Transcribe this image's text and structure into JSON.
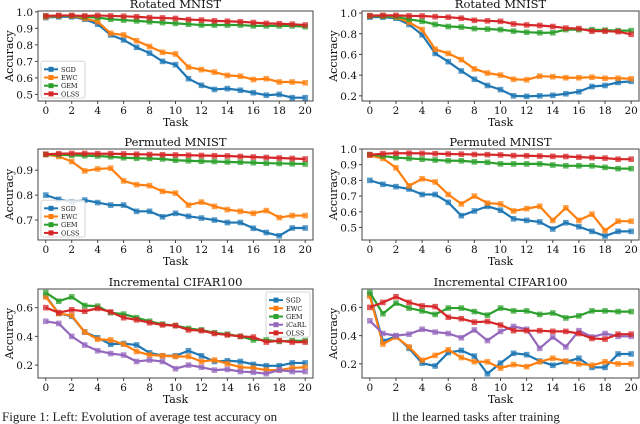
{
  "figure": {
    "caption_left": "Figure 1: Left: Evolution of average test accuracy on",
    "caption_right": "ll the learned tasks after training"
  },
  "series_colors": {
    "SGD": "#1f77b4",
    "EWC": "#ff7f0e",
    "GEM": "#2ca02c",
    "iCaRL": "#9467bd",
    "OLSS": "#d62728"
  },
  "chart_data": [
    {
      "id": "rotated-mnist-left",
      "type": "line",
      "title": "Rotated MNIST",
      "xlabel": "Task",
      "ylabel": "Accuracy",
      "xlim": [
        -0.6,
        20.6
      ],
      "ylim": [
        0.46,
        1.005
      ],
      "xticks": [
        0,
        2,
        4,
        6,
        8,
        10,
        12,
        14,
        16,
        18,
        20
      ],
      "yticks": [
        0.5,
        0.6,
        0.7,
        0.8,
        0.9,
        1.0
      ],
      "ytick_labels": [
        "0.5",
        "0.6",
        "0.7",
        "0.8",
        "0.9",
        "1.0"
      ],
      "legend": "lower-left",
      "x": [
        0,
        1,
        2,
        3,
        4,
        5,
        6,
        7,
        8,
        9,
        10,
        11,
        12,
        13,
        14,
        15,
        16,
        17,
        18,
        19,
        20
      ],
      "series": [
        {
          "name": "SGD",
          "values": [
            0.965,
            0.97,
            0.97,
            0.955,
            0.925,
            0.86,
            0.83,
            0.785,
            0.75,
            0.7,
            0.68,
            0.595,
            0.555,
            0.53,
            0.535,
            0.525,
            0.51,
            0.495,
            0.5,
            0.48,
            0.48
          ]
        },
        {
          "name": "EWC",
          "values": [
            0.97,
            0.975,
            0.975,
            0.96,
            0.94,
            0.87,
            0.86,
            0.825,
            0.79,
            0.755,
            0.745,
            0.665,
            0.65,
            0.635,
            0.615,
            0.61,
            0.59,
            0.595,
            0.575,
            0.575,
            0.57
          ]
        },
        {
          "name": "GEM",
          "values": [
            0.975,
            0.975,
            0.975,
            0.97,
            0.965,
            0.955,
            0.95,
            0.945,
            0.94,
            0.935,
            0.93,
            0.925,
            0.92,
            0.92,
            0.92,
            0.92,
            0.915,
            0.915,
            0.915,
            0.915,
            0.91
          ]
        },
        {
          "name": "OLSS",
          "values": [
            0.975,
            0.978,
            0.978,
            0.975,
            0.978,
            0.975,
            0.973,
            0.97,
            0.965,
            0.963,
            0.96,
            0.953,
            0.95,
            0.945,
            0.943,
            0.94,
            0.935,
            0.93,
            0.928,
            0.925,
            0.92
          ]
        }
      ]
    },
    {
      "id": "rotated-mnist-right",
      "type": "line",
      "title": "Rotated MNIST",
      "xlabel": "Task",
      "ylabel": "Accuracy",
      "xlim": [
        -0.6,
        20.6
      ],
      "ylim": [
        0.15,
        1.02
      ],
      "xticks": [
        0,
        2,
        4,
        6,
        8,
        10,
        12,
        14,
        16,
        18,
        20
      ],
      "yticks": [
        0.2,
        0.4,
        0.6,
        0.8,
        1.0
      ],
      "ytick_labels": [
        "0.2",
        "0.4",
        "0.6",
        "0.8",
        "1.0"
      ],
      "legend": "none",
      "x": [
        0,
        1,
        2,
        3,
        4,
        5,
        6,
        7,
        8,
        9,
        10,
        11,
        12,
        13,
        14,
        15,
        16,
        17,
        18,
        19,
        20
      ],
      "series": [
        {
          "name": "SGD",
          "values": [
            0.96,
            0.96,
            0.95,
            0.89,
            0.79,
            0.61,
            0.53,
            0.44,
            0.36,
            0.3,
            0.26,
            0.2,
            0.195,
            0.2,
            0.205,
            0.22,
            0.24,
            0.29,
            0.3,
            0.33,
            0.34
          ]
        },
        {
          "name": "EWC",
          "values": [
            0.97,
            0.97,
            0.96,
            0.91,
            0.84,
            0.65,
            0.61,
            0.55,
            0.46,
            0.42,
            0.4,
            0.36,
            0.355,
            0.39,
            0.385,
            0.375,
            0.375,
            0.38,
            0.37,
            0.37,
            0.365
          ]
        },
        {
          "name": "GEM",
          "values": [
            0.97,
            0.97,
            0.965,
            0.94,
            0.92,
            0.89,
            0.87,
            0.865,
            0.85,
            0.845,
            0.84,
            0.825,
            0.815,
            0.81,
            0.81,
            0.84,
            0.84,
            0.84,
            0.835,
            0.83,
            0.83
          ]
        },
        {
          "name": "OLSS",
          "values": [
            0.975,
            0.978,
            0.978,
            0.973,
            0.972,
            0.965,
            0.96,
            0.95,
            0.93,
            0.925,
            0.92,
            0.895,
            0.885,
            0.88,
            0.87,
            0.855,
            0.85,
            0.825,
            0.825,
            0.82,
            0.795
          ]
        }
      ]
    },
    {
      "id": "permuted-mnist-left",
      "type": "line",
      "title": "Permuted MNIST",
      "xlabel": "Task",
      "ylabel": "Accuracy",
      "xlim": [
        -0.6,
        20.6
      ],
      "ylim": [
        0.62,
        0.985
      ],
      "xticks": [
        0,
        2,
        4,
        6,
        8,
        10,
        12,
        14,
        16,
        18,
        20
      ],
      "yticks": [
        0.7,
        0.8,
        0.9
      ],
      "ytick_labels": [
        "0.7",
        "0.8",
        "0.9"
      ],
      "legend": "lower-left",
      "x": [
        0,
        1,
        2,
        3,
        4,
        5,
        6,
        7,
        8,
        9,
        10,
        11,
        12,
        13,
        14,
        15,
        16,
        17,
        18,
        19,
        20
      ],
      "series": [
        {
          "name": "SGD",
          "values": [
            0.8,
            0.783,
            0.772,
            0.78,
            0.77,
            0.76,
            0.76,
            0.735,
            0.735,
            0.713,
            0.727,
            0.715,
            0.708,
            0.7,
            0.69,
            0.69,
            0.667,
            0.65,
            0.637,
            0.668,
            0.668
          ]
        },
        {
          "name": "EWC",
          "values": [
            0.963,
            0.955,
            0.935,
            0.897,
            0.905,
            0.908,
            0.857,
            0.842,
            0.838,
            0.815,
            0.808,
            0.76,
            0.772,
            0.755,
            0.742,
            0.735,
            0.727,
            0.738,
            0.71,
            0.718,
            0.718
          ]
        },
        {
          "name": "GEM",
          "values": [
            0.963,
            0.962,
            0.96,
            0.958,
            0.957,
            0.954,
            0.95,
            0.948,
            0.947,
            0.945,
            0.94,
            0.938,
            0.936,
            0.935,
            0.933,
            0.932,
            0.93,
            0.928,
            0.927,
            0.926,
            0.925
          ]
        },
        {
          "name": "OLSS",
          "values": [
            0.964,
            0.966,
            0.967,
            0.967,
            0.966,
            0.966,
            0.965,
            0.964,
            0.963,
            0.962,
            0.961,
            0.96,
            0.959,
            0.958,
            0.957,
            0.955,
            0.953,
            0.951,
            0.949,
            0.947,
            0.945
          ]
        }
      ]
    },
    {
      "id": "permuted-mnist-right",
      "type": "line",
      "title": "Permuted MNIST",
      "xlabel": "Task",
      "ylabel": "Accuracy",
      "xlim": [
        -0.6,
        20.6
      ],
      "ylim": [
        0.42,
        1.0
      ],
      "xticks": [
        0,
        2,
        4,
        6,
        8,
        10,
        12,
        14,
        16,
        18,
        20
      ],
      "yticks": [
        0.5,
        0.6,
        0.7,
        0.8,
        0.9,
        1.0
      ],
      "ytick_labels": [
        "0.5",
        "0.6",
        "0.7",
        "0.8",
        "0.9",
        "1.0"
      ],
      "legend": "none",
      "x": [
        0,
        1,
        2,
        3,
        4,
        5,
        6,
        7,
        8,
        9,
        10,
        11,
        12,
        13,
        14,
        15,
        16,
        17,
        18,
        19,
        20
      ],
      "series": [
        {
          "name": "SGD",
          "values": [
            0.8,
            0.775,
            0.76,
            0.745,
            0.71,
            0.71,
            0.66,
            0.575,
            0.605,
            0.635,
            0.61,
            0.555,
            0.545,
            0.535,
            0.49,
            0.53,
            0.505,
            0.475,
            0.445,
            0.475,
            0.475
          ]
        },
        {
          "name": "EWC",
          "values": [
            0.96,
            0.94,
            0.88,
            0.765,
            0.81,
            0.79,
            0.71,
            0.65,
            0.7,
            0.655,
            0.65,
            0.605,
            0.62,
            0.635,
            0.545,
            0.625,
            0.545,
            0.585,
            0.48,
            0.54,
            0.54
          ]
        },
        {
          "name": "GEM",
          "values": [
            0.965,
            0.955,
            0.945,
            0.94,
            0.935,
            0.93,
            0.925,
            0.925,
            0.918,
            0.915,
            0.905,
            0.905,
            0.905,
            0.905,
            0.898,
            0.893,
            0.893,
            0.893,
            0.883,
            0.875,
            0.875
          ]
        },
        {
          "name": "OLSS",
          "values": [
            0.963,
            0.97,
            0.973,
            0.973,
            0.972,
            0.97,
            0.968,
            0.967,
            0.965,
            0.964,
            0.962,
            0.958,
            0.957,
            0.955,
            0.953,
            0.952,
            0.948,
            0.945,
            0.942,
            0.935,
            0.935
          ]
        }
      ]
    },
    {
      "id": "incremental-cifar100-left",
      "type": "line",
      "title": "Incremental CIFAR100",
      "xlabel": "Task",
      "ylabel": "Accuracy",
      "xlim": [
        -0.6,
        20.6
      ],
      "ylim": [
        0.11,
        0.73
      ],
      "xticks": [
        0,
        2,
        4,
        6,
        8,
        10,
        12,
        14,
        16,
        18,
        20
      ],
      "yticks": [
        0.2,
        0.4,
        0.6
      ],
      "ytick_labels": [
        "0.2",
        "0.4",
        "0.6"
      ],
      "legend": "upper-right",
      "x": [
        0,
        1,
        2,
        3,
        4,
        5,
        6,
        7,
        8,
        9,
        10,
        11,
        12,
        13,
        14,
        15,
        16,
        17,
        18,
        19,
        20
      ],
      "series": [
        {
          "name": "SGD",
          "values": [
            0.68,
            0.56,
            0.54,
            0.43,
            0.39,
            0.345,
            0.35,
            0.34,
            0.285,
            0.265,
            0.265,
            0.3,
            0.265,
            0.225,
            0.23,
            0.225,
            0.205,
            0.195,
            0.195,
            0.215,
            0.215
          ]
        },
        {
          "name": "EWC",
          "values": [
            0.675,
            0.56,
            0.545,
            0.43,
            0.38,
            0.375,
            0.345,
            0.295,
            0.27,
            0.265,
            0.26,
            0.26,
            0.225,
            0.235,
            0.21,
            0.185,
            0.18,
            0.165,
            0.165,
            0.18,
            0.185
          ]
        },
        {
          "name": "GEM",
          "values": [
            0.705,
            0.645,
            0.675,
            0.615,
            0.61,
            0.565,
            0.555,
            0.53,
            0.505,
            0.485,
            0.475,
            0.455,
            0.445,
            0.425,
            0.415,
            0.4,
            0.375,
            0.375,
            0.365,
            0.37,
            0.37
          ]
        },
        {
          "name": "iCaRL",
          "values": [
            0.505,
            0.49,
            0.4,
            0.34,
            0.3,
            0.28,
            0.27,
            0.225,
            0.235,
            0.225,
            0.175,
            0.2,
            0.185,
            0.165,
            0.17,
            0.155,
            0.15,
            0.14,
            0.165,
            0.155,
            0.155
          ]
        },
        {
          "name": "OLSS",
          "values": [
            0.6,
            0.565,
            0.585,
            0.575,
            0.595,
            0.57,
            0.53,
            0.515,
            0.495,
            0.48,
            0.475,
            0.445,
            0.44,
            0.42,
            0.41,
            0.4,
            0.395,
            0.36,
            0.37,
            0.36,
            0.36
          ]
        }
      ]
    },
    {
      "id": "incremental-cifar100-right",
      "type": "line",
      "title": "Incremental CIFAR100",
      "xlabel": "Task",
      "ylabel": "Accuracy",
      "xlim": [
        -0.6,
        20.6
      ],
      "ylim": [
        0.1,
        0.73
      ],
      "xticks": [
        0,
        2,
        4,
        6,
        8,
        10,
        12,
        14,
        16,
        18,
        20
      ],
      "yticks": [
        0.2,
        0.4,
        0.6
      ],
      "ytick_labels": [
        "0.2",
        "0.4",
        "0.6"
      ],
      "legend": "none",
      "x": [
        0,
        1,
        2,
        3,
        4,
        5,
        6,
        7,
        8,
        9,
        10,
        11,
        12,
        13,
        14,
        15,
        16,
        17,
        18,
        19,
        20
      ],
      "series": [
        {
          "name": "SGD",
          "values": [
            0.69,
            0.36,
            0.395,
            0.31,
            0.205,
            0.185,
            0.28,
            0.295,
            0.255,
            0.13,
            0.205,
            0.275,
            0.265,
            0.22,
            0.19,
            0.215,
            0.24,
            0.175,
            0.175,
            0.27,
            0.27
          ]
        },
        {
          "name": "EWC",
          "values": [
            0.68,
            0.34,
            0.39,
            0.32,
            0.225,
            0.26,
            0.3,
            0.245,
            0.215,
            0.215,
            0.17,
            0.195,
            0.18,
            0.215,
            0.24,
            0.22,
            0.2,
            0.19,
            0.215,
            0.2,
            0.2
          ]
        },
        {
          "name": "GEM",
          "values": [
            0.705,
            0.555,
            0.63,
            0.595,
            0.575,
            0.55,
            0.595,
            0.595,
            0.57,
            0.545,
            0.595,
            0.575,
            0.575,
            0.55,
            0.56,
            0.525,
            0.54,
            0.575,
            0.575,
            0.57,
            0.57
          ]
        },
        {
          "name": "iCaRL",
          "values": [
            0.505,
            0.415,
            0.4,
            0.41,
            0.445,
            0.425,
            0.415,
            0.385,
            0.44,
            0.365,
            0.43,
            0.465,
            0.445,
            0.31,
            0.39,
            0.32,
            0.435,
            0.39,
            0.415,
            0.395,
            0.395
          ]
        },
        {
          "name": "OLSS",
          "values": [
            0.6,
            0.635,
            0.675,
            0.635,
            0.61,
            0.605,
            0.53,
            0.52,
            0.495,
            0.5,
            0.475,
            0.435,
            0.435,
            0.435,
            0.43,
            0.43,
            0.415,
            0.38,
            0.375,
            0.41,
            0.41
          ]
        }
      ]
    }
  ]
}
